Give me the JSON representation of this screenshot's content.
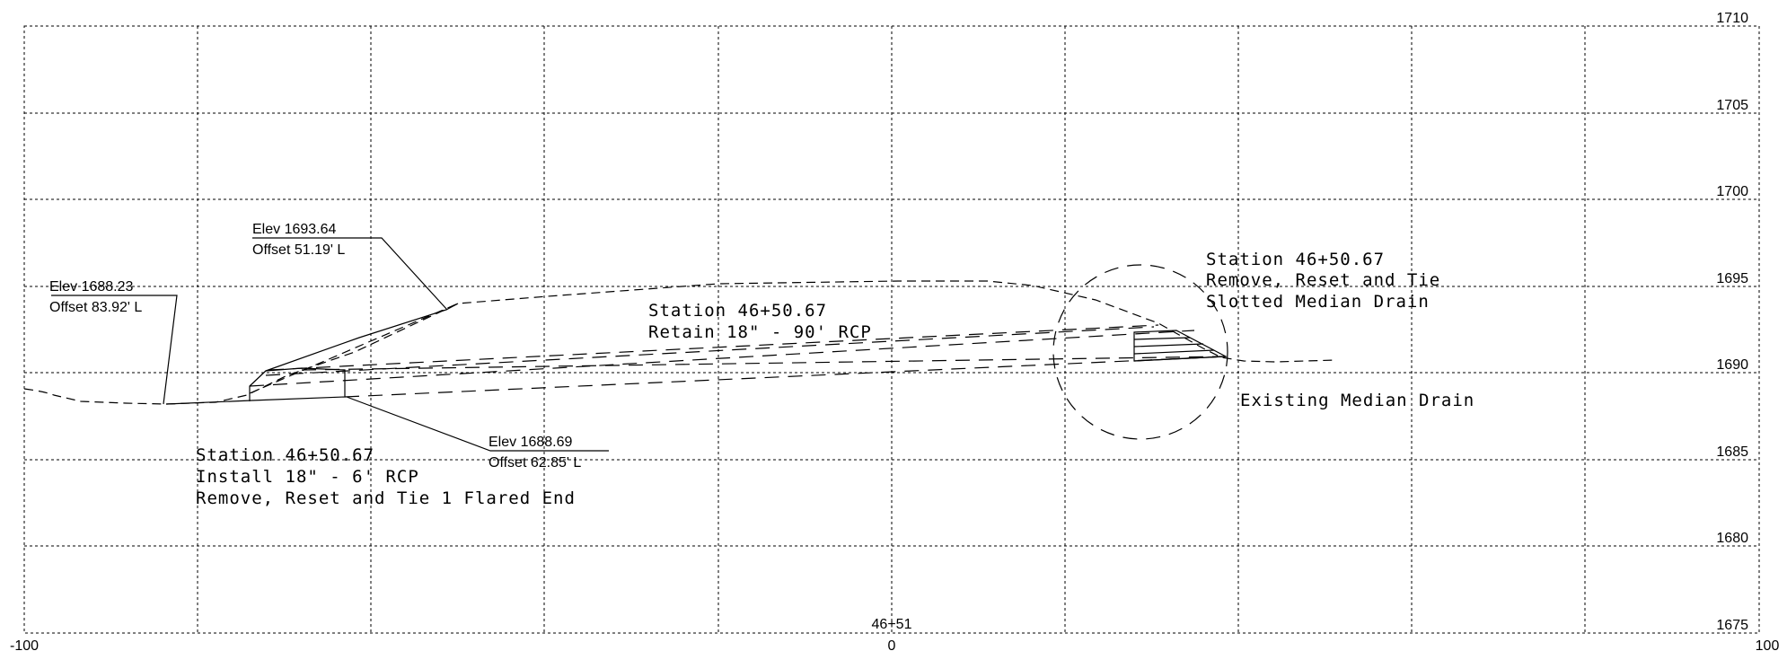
{
  "drawing": {
    "elevation_ticks": [
      "1710",
      "1705",
      "1700",
      "1695",
      "1690",
      "1685",
      "1680",
      "1675"
    ],
    "offset_ticks": {
      "left": "-100",
      "center": "0",
      "right": "100"
    },
    "station_label": "46+51"
  },
  "annotations": {
    "elev_left": {
      "elev": "Elev 1688.23",
      "offset": "Offset 83.92' L"
    },
    "elev_top": {
      "elev": "Elev 1693.64",
      "offset": "Offset 51.19' L"
    },
    "elev_bottom": {
      "elev": "Elev 1688.69",
      "offset": "Offset 62.85' L"
    },
    "note_rcp_retain": [
      "Station 46+50.67",
      "Retain 18\" - 90' RCP"
    ],
    "note_rcp_install": [
      "Station 46+50.67",
      "Install 18\" - 6' RCP",
      "Remove, Reset and Tie 1 Flared End"
    ],
    "note_median_drain": [
      "Station 46+50.67",
      "Remove, Reset and Tie",
      "Slotted Median Drain"
    ],
    "note_existing": "Existing Median Drain"
  }
}
